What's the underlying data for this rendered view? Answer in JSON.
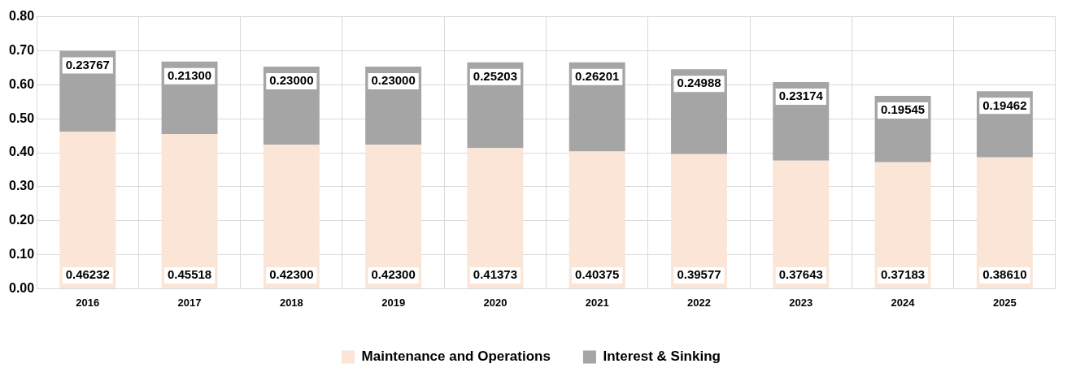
{
  "chart_data": {
    "type": "bar",
    "stacked": true,
    "categories": [
      "2016",
      "2017",
      "2018",
      "2019",
      "2020",
      "2021",
      "2022",
      "2023",
      "2024",
      "2025"
    ],
    "series": [
      {
        "name": "Maintenance and Operations",
        "color": "#fbe5d6",
        "values": [
          0.46232,
          0.45518,
          0.423,
          0.423,
          0.41373,
          0.40375,
          0.39577,
          0.37643,
          0.37183,
          0.3861
        ],
        "value_labels": [
          "0.46232",
          "0.45518",
          "0.42300",
          "0.42300",
          "0.41373",
          "0.40375",
          "0.39577",
          "0.37643",
          "0.37183",
          "0.38610"
        ]
      },
      {
        "name": "Interest & Sinking",
        "color": "#a5a5a5",
        "values": [
          0.23767,
          0.213,
          0.23,
          0.23,
          0.25203,
          0.26201,
          0.24988,
          0.23174,
          0.19545,
          0.19462
        ],
        "value_labels": [
          "0.23767",
          "0.21300",
          "0.23000",
          "0.23000",
          "0.25203",
          "0.26201",
          "0.24988",
          "0.23174",
          "0.19545",
          "0.19462"
        ]
      }
    ],
    "ylim": [
      0,
      0.8
    ],
    "yticks": [
      {
        "value": 0,
        "label": "0.00"
      },
      {
        "value": 0.1,
        "label": "0.10"
      },
      {
        "value": 0.2,
        "label": "0.20"
      },
      {
        "value": 0.3,
        "label": "0.30"
      },
      {
        "value": 0.4,
        "label": "0.40"
      },
      {
        "value": 0.5,
        "label": "0.50"
      },
      {
        "value": 0.6,
        "label": "0.60"
      },
      {
        "value": 0.7,
        "label": "0.70"
      },
      {
        "value": 0.8,
        "label": "0.80"
      }
    ],
    "grid": true,
    "legend": "bottom"
  }
}
